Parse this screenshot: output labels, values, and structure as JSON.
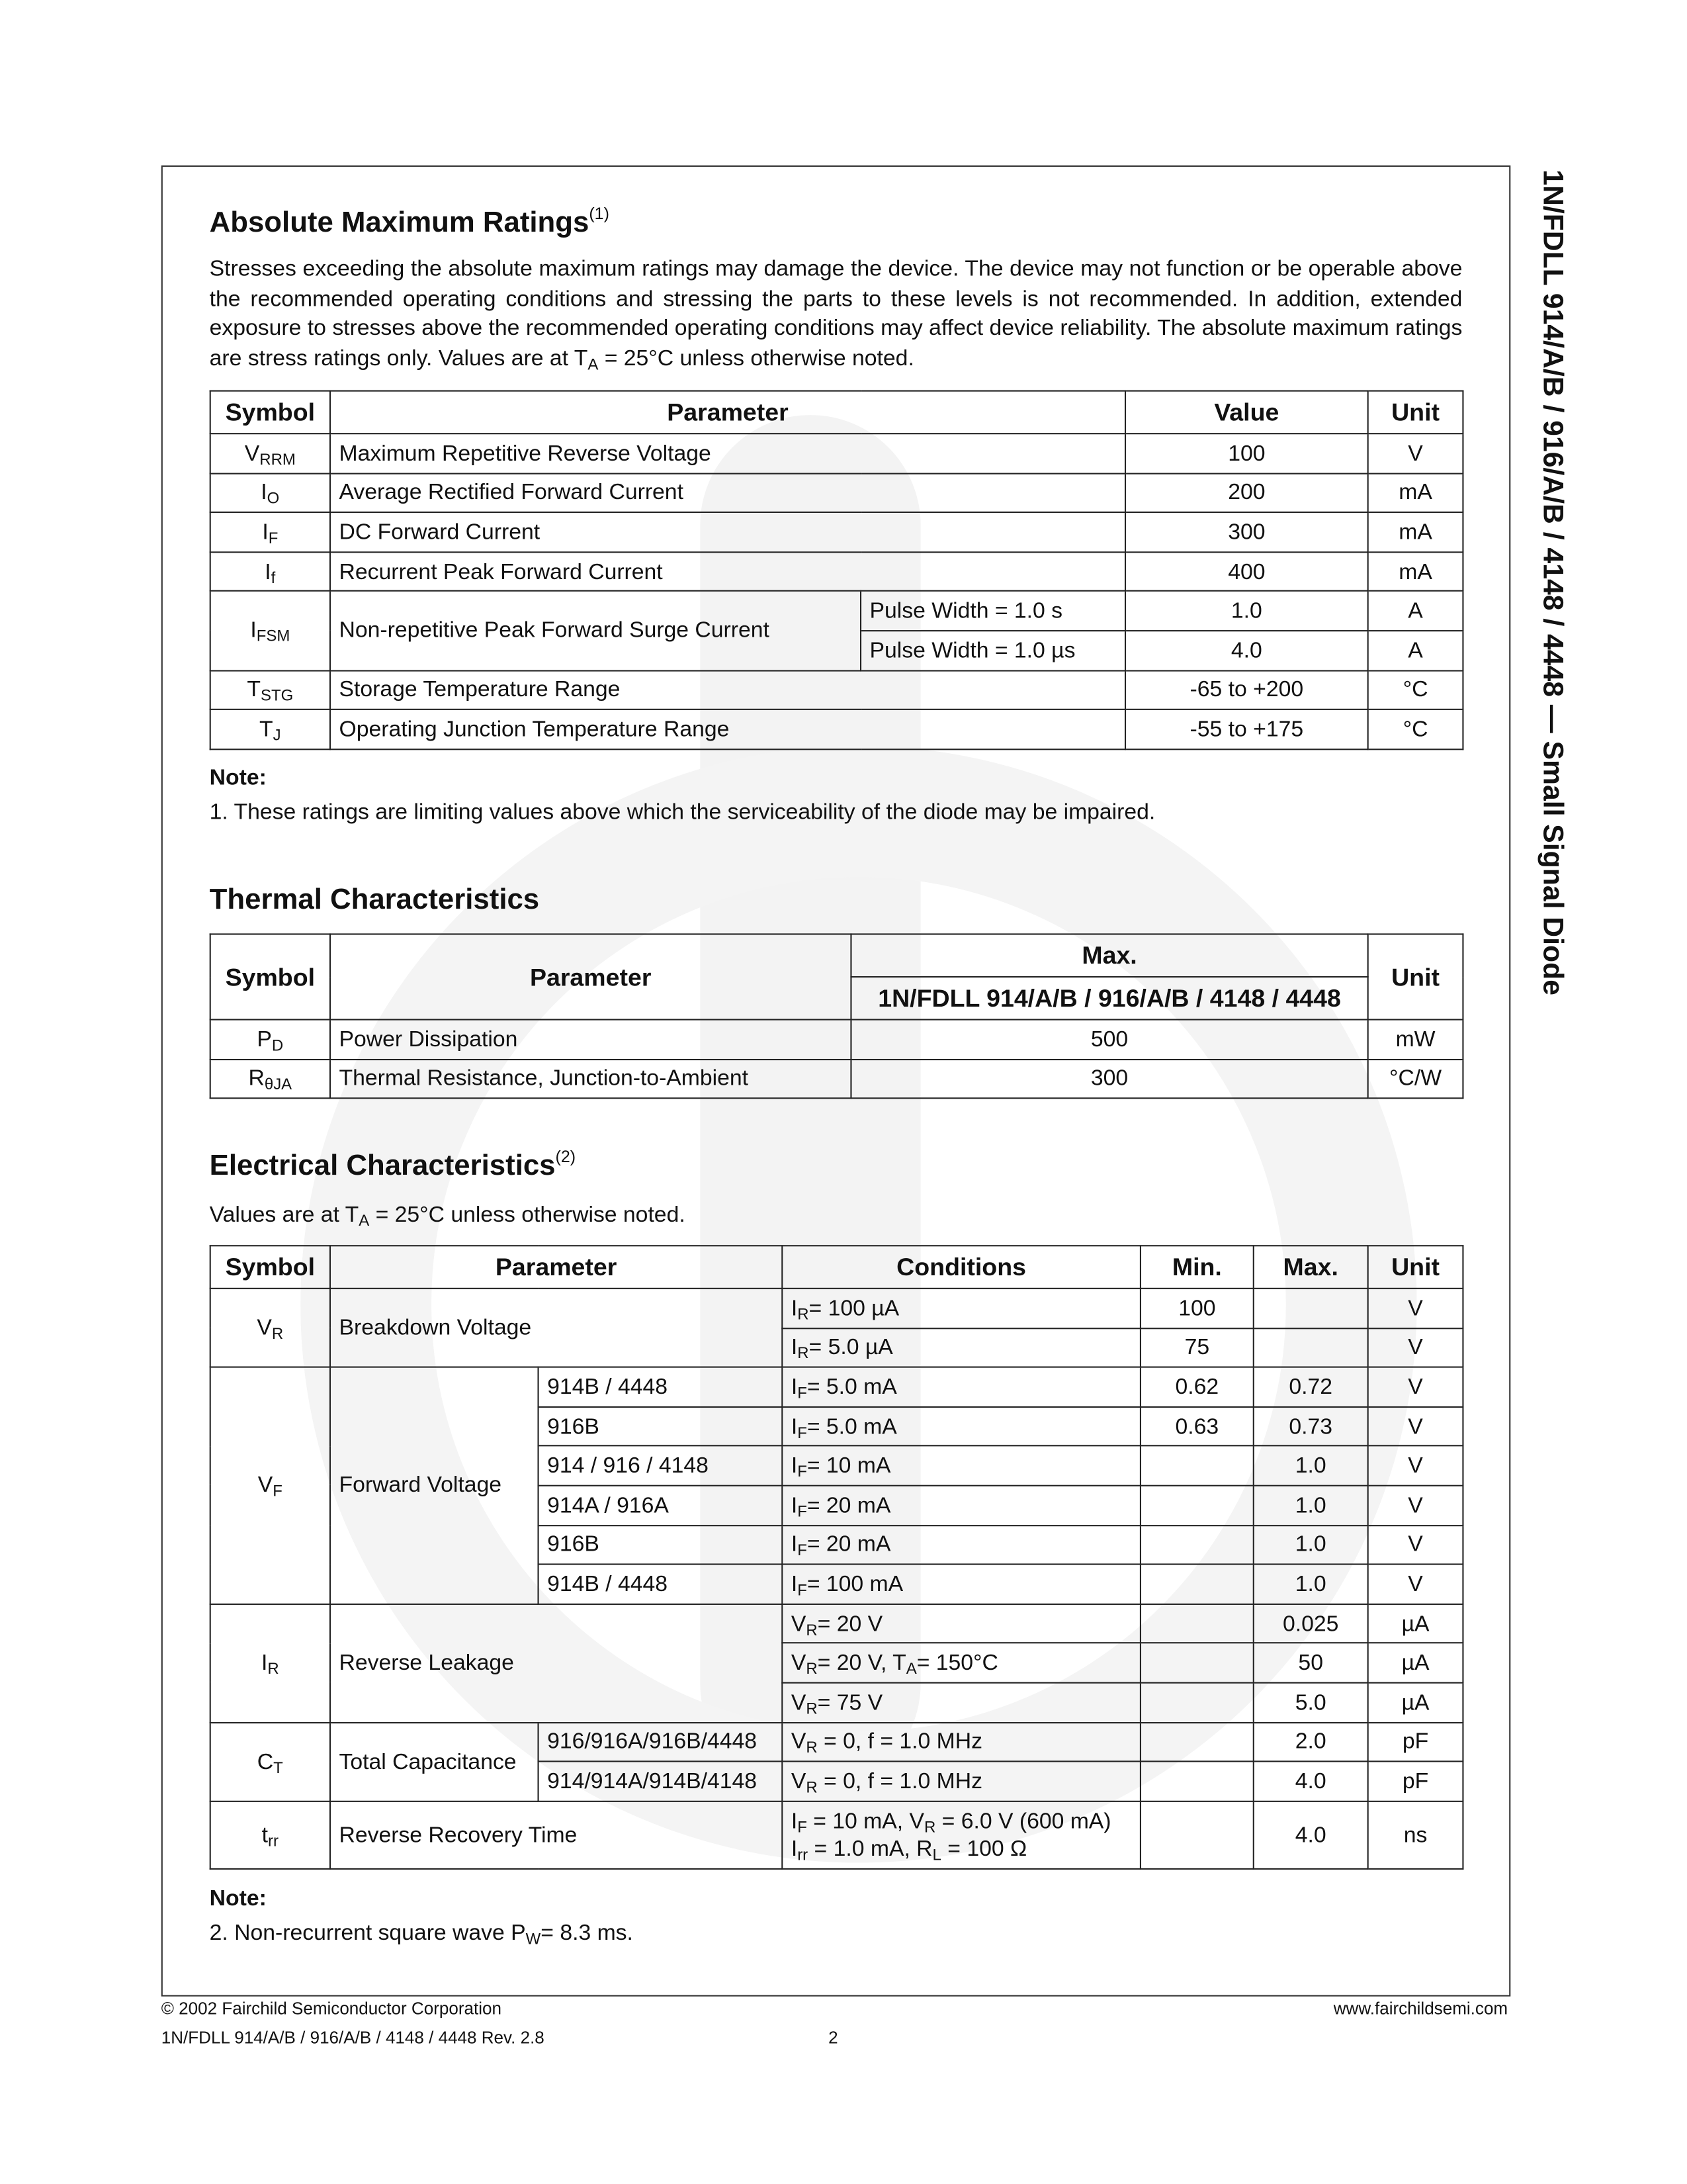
{
  "side_title": "1N/FDLL 914/A/B / 916/A/B / 4148 / 4448 — Small Signal Diode",
  "abs_max": {
    "title": "Absolute Maximum Ratings",
    "title_note": "(1)",
    "intro_a": "Stresses exceeding the absolute maximum ratings may damage the device. The device may not function or be operable above the recommended operating conditions and stressing the parts to these levels is not recommended. In addition, extended exposure to stresses above the recommended operating conditions may affect device reliability. The absolute maximum ratings are stress ratings only. Values are at T",
    "intro_sub": "A",
    "intro_b": " = 25°C unless otherwise noted.",
    "headers": [
      "Symbol",
      "Parameter",
      "Value",
      "Unit"
    ],
    "groups": [
      {
        "symbol": [
          "V",
          {
            "sub": "RRM"
          }
        ],
        "parameter": "Maximum Repetitive Reverse Voltage",
        "rows": [
          {
            "value": "100",
            "unit": "V"
          }
        ]
      },
      {
        "symbol": [
          "I",
          {
            "sub": "O"
          }
        ],
        "parameter": "Average Rectified Forward Current",
        "rows": [
          {
            "value": "200",
            "unit": "mA"
          }
        ]
      },
      {
        "symbol": [
          "I",
          {
            "sub": "F"
          }
        ],
        "parameter": "DC Forward Current",
        "rows": [
          {
            "value": "300",
            "unit": "mA"
          }
        ]
      },
      {
        "symbol": [
          "I",
          {
            "sub": "f"
          }
        ],
        "parameter": "Recurrent Peak Forward Current",
        "rows": [
          {
            "value": "400",
            "unit": "mA"
          }
        ]
      },
      {
        "symbol": [
          "I",
          {
            "sub": "FSM"
          }
        ],
        "parameter": "Non-repetitive Peak Forward Surge Current",
        "rows": [
          {
            "variant": "Pulse Width = 1.0 s",
            "value": "1.0",
            "unit": "A"
          },
          {
            "variant": "Pulse Width = 1.0 µs",
            "value": "4.0",
            "unit": "A"
          }
        ]
      },
      {
        "symbol": [
          "T",
          {
            "sub": "STG"
          }
        ],
        "parameter": "Storage Temperature Range",
        "rows": [
          {
            "value": "-65 to +200",
            "unit": "°C"
          }
        ]
      },
      {
        "symbol": [
          "T",
          {
            "sub": "J"
          }
        ],
        "parameter": "Operating Junction Temperature Range",
        "rows": [
          {
            "value": "-55 to +175",
            "unit": "°C"
          }
        ]
      }
    ],
    "note_label": "Note:",
    "note": "1. These ratings are limiting values above which the serviceability of the diode may be impaired."
  },
  "thermal": {
    "title": "Thermal Characteristics",
    "headers": {
      "symbol": "Symbol",
      "parameter": "Parameter",
      "max": "Max.",
      "max_sub": "1N/FDLL 914/A/B / 916/A/B / 4148 / 4448",
      "unit": "Unit"
    },
    "rows": [
      {
        "symbol": [
          "P",
          {
            "sub": "D"
          }
        ],
        "parameter": "Power Dissipation",
        "value": "500",
        "unit": "mW"
      },
      {
        "symbol": [
          "R",
          {
            "sub": "θJA"
          }
        ],
        "parameter": "Thermal Resistance, Junction-to-Ambient",
        "value": "300",
        "unit": "°C/W"
      }
    ]
  },
  "electrical": {
    "title": "Electrical Characteristics",
    "title_note": "(2)",
    "intro_a": "Values are at T",
    "intro_sub": "A",
    "intro_b": " = 25°C unless otherwise noted.",
    "headers": [
      "Symbol",
      "Parameter",
      "Conditions",
      "Min.",
      "Max.",
      "Unit"
    ],
    "groups": [
      {
        "symbol": [
          "V",
          {
            "sub": "R"
          }
        ],
        "parameter": "Breakdown Voltage",
        "rows": [
          {
            "conditions": [
              "I",
              {
                "sub": "R"
              },
              "= 100 µA"
            ],
            "min": "100",
            "max": "",
            "unit": "V"
          },
          {
            "conditions": [
              "I",
              {
                "sub": "R"
              },
              "= 5.0 µA"
            ],
            "min": "75",
            "max": "",
            "unit": "V"
          }
        ]
      },
      {
        "symbol": [
          "V",
          {
            "sub": "F"
          }
        ],
        "parameter": "Forward Voltage",
        "rows": [
          {
            "variant": "914B / 4448",
            "conditions": [
              "I",
              {
                "sub": "F"
              },
              "= 5.0 mA"
            ],
            "min": "0.62",
            "max": "0.72",
            "unit": "V"
          },
          {
            "variant": "916B",
            "conditions": [
              "I",
              {
                "sub": "F"
              },
              "= 5.0 mA"
            ],
            "min": "0.63",
            "max": "0.73",
            "unit": "V"
          },
          {
            "variant": "914 / 916 / 4148",
            "conditions": [
              "I",
              {
                "sub": "F"
              },
              "= 10 mA"
            ],
            "min": "",
            "max": "1.0",
            "unit": "V"
          },
          {
            "variant": "914A / 916A",
            "conditions": [
              "I",
              {
                "sub": "F"
              },
              "= 20 mA"
            ],
            "min": "",
            "max": "1.0",
            "unit": "V"
          },
          {
            "variant": "916B",
            "conditions": [
              "I",
              {
                "sub": "F"
              },
              "= 20 mA"
            ],
            "min": "",
            "max": "1.0",
            "unit": "V"
          },
          {
            "variant": "914B / 4448",
            "conditions": [
              "I",
              {
                "sub": "F"
              },
              "= 100 mA"
            ],
            "min": "",
            "max": "1.0",
            "unit": "V"
          }
        ]
      },
      {
        "symbol": [
          "I",
          {
            "sub": "R"
          }
        ],
        "parameter": "Reverse Leakage",
        "rows": [
          {
            "conditions": [
              "V",
              {
                "sub": "R"
              },
              "= 20 V"
            ],
            "min": "",
            "max": "0.025",
            "unit": "µA"
          },
          {
            "conditions": [
              "V",
              {
                "sub": "R"
              },
              "= 20 V, T",
              {
                "sub": "A"
              },
              "= 150°C"
            ],
            "min": "",
            "max": "50",
            "unit": "µA"
          },
          {
            "conditions": [
              "V",
              {
                "sub": "R"
              },
              "= 75 V"
            ],
            "min": "",
            "max": "5.0",
            "unit": "µA"
          }
        ]
      },
      {
        "symbol": [
          "C",
          {
            "sub": "T"
          }
        ],
        "parameter": "Total Capacitance",
        "rows": [
          {
            "variant": "916/916A/916B/4448",
            "conditions": [
              "V",
              {
                "sub": "R"
              },
              " = 0, f = 1.0 MHz"
            ],
            "min": "",
            "max": "2.0",
            "unit": "pF"
          },
          {
            "variant": "914/914A/914B/4148",
            "conditions": [
              "V",
              {
                "sub": "R"
              },
              " = 0, f = 1.0 MHz"
            ],
            "min": "",
            "max": "4.0",
            "unit": "pF"
          }
        ]
      },
      {
        "symbol": [
          "t",
          {
            "sub": "rr"
          }
        ],
        "parameter": "Reverse Recovery Time",
        "rows": [
          {
            "conditions": [
              "I",
              {
                "sub": "F"
              },
              " = 10 mA, V",
              {
                "sub": "R"
              },
              " = 6.0 V (600 mA)",
              {
                "br": true
              },
              "I",
              {
                "sub": "rr"
              },
              " = 1.0 mA, R",
              {
                "sub": "L"
              },
              " = 100 Ω"
            ],
            "min": "",
            "max": "4.0",
            "unit": "ns"
          }
        ]
      }
    ],
    "note_label": "Note:",
    "note_a": "2. Non-recurrent square wave P",
    "note_sub": "W",
    "note_b": "= 8.3 ms."
  },
  "footer": {
    "copyright": "© 2002 Fairchild Semiconductor Corporation",
    "doc_rev": "1N/FDLL 914/A/B / 916/A/B / 4148 / 4448 Rev. 2.8",
    "page_number": "2",
    "website": "www.fairchildsemi.com"
  }
}
